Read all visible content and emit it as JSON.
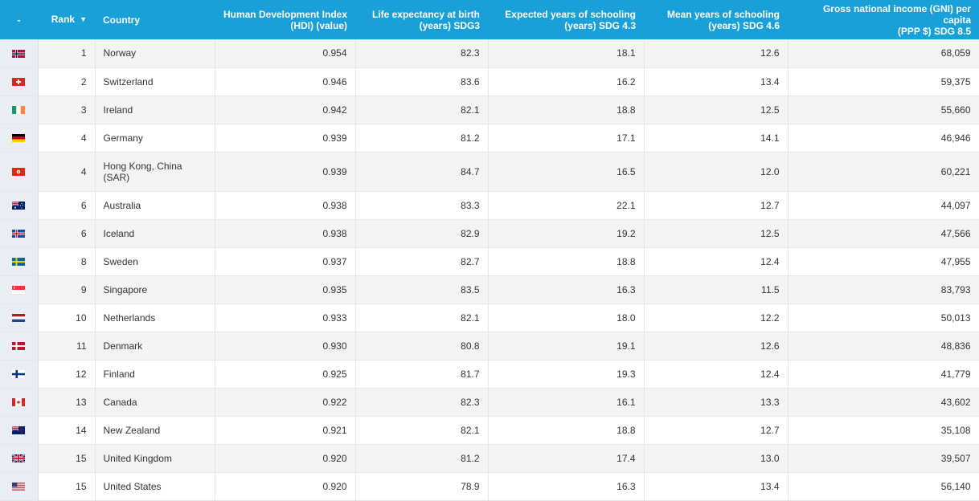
{
  "header": {
    "flag_col": "-",
    "rank": "Rank",
    "sort_icon": "▼",
    "country": "Country",
    "hdi": [
      "Human Development Index",
      "(HDI) (value)"
    ],
    "life": [
      "Life expectancy at birth",
      "(years) SDG3"
    ],
    "expected": [
      "Expected years of schooling",
      "(years) SDG 4.3"
    ],
    "mean": [
      "Mean years of schooling",
      "(years) SDG 4.6"
    ],
    "gni": [
      "Gross national income (GNI) per capita",
      "(PPP $) SDG 8.5"
    ]
  },
  "colors": {
    "header_bg": "#1aa0d8",
    "row_alt": "#f4f4f4",
    "flag_col_bg": "#e9edf4"
  },
  "rows": [
    {
      "flag": "norway-flag-icon",
      "rank": "1",
      "country": [
        "Norway"
      ],
      "hdi": "0.954",
      "life": "82.3",
      "expected": "18.1",
      "mean": "12.6",
      "gni": "68,059"
    },
    {
      "flag": "switzerland-flag-icon",
      "rank": "2",
      "country": [
        "Switzerland"
      ],
      "hdi": "0.946",
      "life": "83.6",
      "expected": "16.2",
      "mean": "13.4",
      "gni": "59,375"
    },
    {
      "flag": "ireland-flag-icon",
      "rank": "3",
      "country": [
        "Ireland"
      ],
      "hdi": "0.942",
      "life": "82.1",
      "expected": "18.8",
      "mean": "12.5",
      "gni": "55,660"
    },
    {
      "flag": "germany-flag-icon",
      "rank": "4",
      "country": [
        "Germany"
      ],
      "hdi": "0.939",
      "life": "81.2",
      "expected": "17.1",
      "mean": "14.1",
      "gni": "46,946"
    },
    {
      "flag": "hong-kong-flag-icon",
      "rank": "4",
      "country": [
        "Hong Kong, China",
        "(SAR)"
      ],
      "hdi": "0.939",
      "life": "84.7",
      "expected": "16.5",
      "mean": "12.0",
      "gni": "60,221"
    },
    {
      "flag": "australia-flag-icon",
      "rank": "6",
      "country": [
        "Australia"
      ],
      "hdi": "0.938",
      "life": "83.3",
      "expected": "22.1",
      "mean": "12.7",
      "gni": "44,097"
    },
    {
      "flag": "iceland-flag-icon",
      "rank": "6",
      "country": [
        "Iceland"
      ],
      "hdi": "0.938",
      "life": "82.9",
      "expected": "19.2",
      "mean": "12.5",
      "gni": "47,566"
    },
    {
      "flag": "sweden-flag-icon",
      "rank": "8",
      "country": [
        "Sweden"
      ],
      "hdi": "0.937",
      "life": "82.7",
      "expected": "18.8",
      "mean": "12.4",
      "gni": "47,955"
    },
    {
      "flag": "singapore-flag-icon",
      "rank": "9",
      "country": [
        "Singapore"
      ],
      "hdi": "0.935",
      "life": "83.5",
      "expected": "16.3",
      "mean": "11.5",
      "gni": "83,793"
    },
    {
      "flag": "netherlands-flag-icon",
      "rank": "10",
      "country": [
        "Netherlands"
      ],
      "hdi": "0.933",
      "life": "82.1",
      "expected": "18.0",
      "mean": "12.2",
      "gni": "50,013"
    },
    {
      "flag": "denmark-flag-icon",
      "rank": "11",
      "country": [
        "Denmark"
      ],
      "hdi": "0.930",
      "life": "80.8",
      "expected": "19.1",
      "mean": "12.6",
      "gni": "48,836"
    },
    {
      "flag": "finland-flag-icon",
      "rank": "12",
      "country": [
        "Finland"
      ],
      "hdi": "0.925",
      "life": "81.7",
      "expected": "19.3",
      "mean": "12.4",
      "gni": "41,779"
    },
    {
      "flag": "canada-flag-icon",
      "rank": "13",
      "country": [
        "Canada"
      ],
      "hdi": "0.922",
      "life": "82.3",
      "expected": "16.1",
      "mean": "13.3",
      "gni": "43,602"
    },
    {
      "flag": "new-zealand-flag-icon",
      "rank": "14",
      "country": [
        "New Zealand"
      ],
      "hdi": "0.921",
      "life": "82.1",
      "expected": "18.8",
      "mean": "12.7",
      "gni": "35,108"
    },
    {
      "flag": "united-kingdom-flag-icon",
      "rank": "15",
      "country": [
        "United Kingdom"
      ],
      "hdi": "0.920",
      "life": "81.2",
      "expected": "17.4",
      "mean": "13.0",
      "gni": "39,507"
    },
    {
      "flag": "united-states-flag-icon",
      "rank": "15",
      "country": [
        "United States"
      ],
      "hdi": "0.920",
      "life": "78.9",
      "expected": "16.3",
      "mean": "13.4",
      "gni": "56,140"
    }
  ]
}
